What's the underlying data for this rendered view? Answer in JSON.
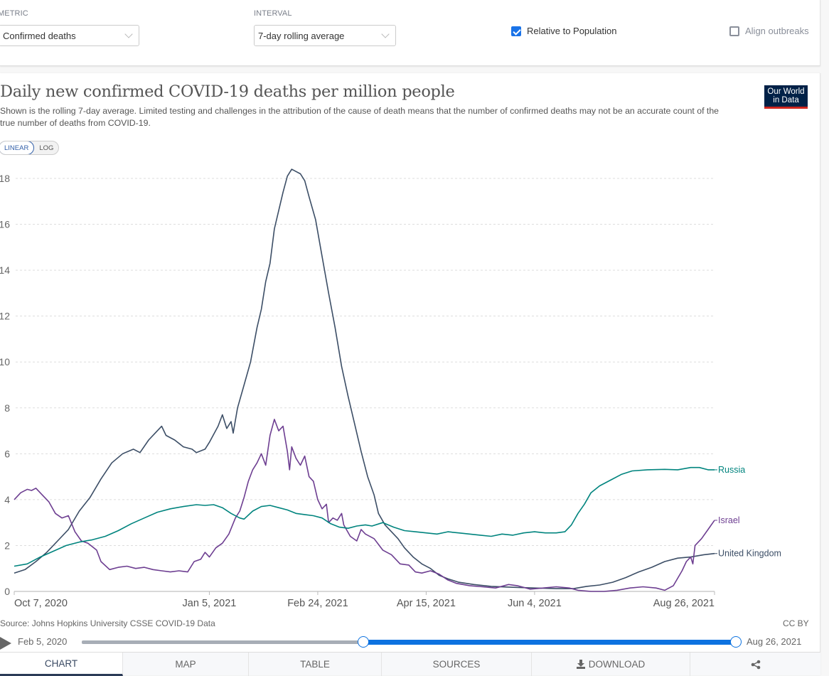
{
  "controls": {
    "metric_label": "METRIC",
    "metric_value": "Confirmed deaths",
    "interval_label": "INTERVAL",
    "interval_value": "7-day rolling average",
    "relative_to_population": {
      "label": "Relative to Population",
      "checked": true
    },
    "align_outbreaks": {
      "label": "Align outbreaks",
      "checked": false
    }
  },
  "header": {
    "title": "Daily new confirmed COVID-19 deaths per million people",
    "subtitle": "Shown is the rolling 7-day average. Limited testing and challenges in the attribution of the cause of death means that the number of confirmed deaths may not be an accurate count of the true number of deaths from COVID-19.",
    "logo_line1": "Our World",
    "logo_line2": "in Data",
    "scale_options": [
      "LINEAR",
      "LOG"
    ],
    "scale_selected": "LINEAR"
  },
  "footer": {
    "source": "Source: Johns Hopkins University CSSE COVID-19 Data",
    "license": "CC BY"
  },
  "timeline": {
    "start_label": "Feb 5, 2020",
    "end_label": "Aug 26, 2021",
    "selected_start": "Oct 7, 2020",
    "selected_end": "Aug 26, 2021"
  },
  "tabs": [
    {
      "label": "CHART",
      "active": true
    },
    {
      "label": "MAP",
      "active": false
    },
    {
      "label": "TABLE",
      "active": false
    },
    {
      "label": "SOURCES",
      "active": false
    },
    {
      "label": "DOWNLOAD",
      "active": false,
      "icon": "download-icon"
    },
    {
      "label": "",
      "active": false,
      "icon": "share-icon"
    }
  ],
  "chart_data": {
    "type": "line",
    "title": "Daily new confirmed COVID-19 deaths per million people",
    "xlabel": "",
    "ylabel": "",
    "x_start": "2020-10-07",
    "x_end": "2021-08-26",
    "x_ticks": [
      {
        "label": "Oct 7, 2020",
        "day": 0
      },
      {
        "label": "Jan 5, 2021",
        "day": 90
      },
      {
        "label": "Feb 24, 2021",
        "day": 140
      },
      {
        "label": "Apr 15, 2021",
        "day": 190
      },
      {
        "label": "Jun 4, 2021",
        "day": 240
      },
      {
        "label": "Aug 26, 2021",
        "day": 323
      }
    ],
    "y_ticks": [
      0,
      2,
      4,
      6,
      8,
      10,
      12,
      14,
      16,
      18
    ],
    "ylim": [
      0,
      18.5
    ],
    "grid": true,
    "legend": "inline-right",
    "series": [
      {
        "name": "United Kingdom",
        "color": "#3c4e66",
        "points": [
          [
            0,
            0.8
          ],
          [
            5,
            0.95
          ],
          [
            10,
            1.3
          ],
          [
            15,
            1.7
          ],
          [
            20,
            2.2
          ],
          [
            25,
            2.7
          ],
          [
            30,
            3.5
          ],
          [
            35,
            4.1
          ],
          [
            40,
            4.9
          ],
          [
            45,
            5.6
          ],
          [
            50,
            6.0
          ],
          [
            55,
            6.2
          ],
          [
            58,
            6.05
          ],
          [
            62,
            6.6
          ],
          [
            65,
            6.9
          ],
          [
            68,
            7.2
          ],
          [
            70,
            6.8
          ],
          [
            74,
            6.6
          ],
          [
            78,
            6.3
          ],
          [
            82,
            6.2
          ],
          [
            84,
            6.05
          ],
          [
            88,
            6.2
          ],
          [
            90,
            6.5
          ],
          [
            94,
            7.2
          ],
          [
            96,
            7.7
          ],
          [
            98,
            7.1
          ],
          [
            100,
            7.4
          ],
          [
            101,
            6.9
          ],
          [
            103,
            8.0
          ],
          [
            106,
            9.0
          ],
          [
            109,
            10.0
          ],
          [
            112,
            11.5
          ],
          [
            114,
            12.3
          ],
          [
            116,
            13.5
          ],
          [
            118,
            14.3
          ],
          [
            120,
            15.8
          ],
          [
            122,
            16.6
          ],
          [
            124,
            17.4
          ],
          [
            126,
            18.1
          ],
          [
            128,
            18.4
          ],
          [
            130,
            18.3
          ],
          [
            132,
            18.2
          ],
          [
            134,
            17.9
          ],
          [
            136,
            17.2
          ],
          [
            139,
            16.2
          ],
          [
            142,
            14.6
          ],
          [
            145,
            13.0
          ],
          [
            148,
            11.5
          ],
          [
            151,
            9.8
          ],
          [
            154,
            8.5
          ],
          [
            157,
            7.3
          ],
          [
            160,
            6.1
          ],
          [
            163,
            5.0
          ],
          [
            166,
            4.2
          ],
          [
            168,
            3.4
          ],
          [
            171,
            2.9
          ],
          [
            174,
            2.6
          ],
          [
            177,
            2.3
          ],
          [
            180,
            1.9
          ],
          [
            184,
            1.5
          ],
          [
            188,
            1.2
          ],
          [
            192,
            1.0
          ],
          [
            196,
            0.7
          ],
          [
            200,
            0.55
          ],
          [
            205,
            0.4
          ],
          [
            212,
            0.3
          ],
          [
            220,
            0.22
          ],
          [
            230,
            0.18
          ],
          [
            240,
            0.15
          ],
          [
            250,
            0.12
          ],
          [
            258,
            0.12
          ],
          [
            264,
            0.22
          ],
          [
            270,
            0.28
          ],
          [
            276,
            0.4
          ],
          [
            282,
            0.6
          ],
          [
            288,
            0.85
          ],
          [
            294,
            1.05
          ],
          [
            300,
            1.3
          ],
          [
            306,
            1.45
          ],
          [
            312,
            1.5
          ],
          [
            318,
            1.6
          ],
          [
            323,
            1.65
          ]
        ]
      },
      {
        "name": "Israel",
        "color": "#6d3e91",
        "points": [
          [
            0,
            4.0
          ],
          [
            3,
            4.3
          ],
          [
            6,
            4.45
          ],
          [
            8,
            4.4
          ],
          [
            10,
            4.5
          ],
          [
            13,
            4.2
          ],
          [
            16,
            3.9
          ],
          [
            19,
            3.4
          ],
          [
            22,
            3.2
          ],
          [
            25,
            3.3
          ],
          [
            28,
            2.6
          ],
          [
            31,
            2.2
          ],
          [
            34,
            2.1
          ],
          [
            38,
            1.8
          ],
          [
            40,
            1.3
          ],
          [
            44,
            0.95
          ],
          [
            48,
            1.05
          ],
          [
            52,
            1.1
          ],
          [
            56,
            1.0
          ],
          [
            60,
            1.05
          ],
          [
            64,
            0.95
          ],
          [
            68,
            0.9
          ],
          [
            72,
            0.85
          ],
          [
            76,
            0.9
          ],
          [
            80,
            0.85
          ],
          [
            83,
            1.3
          ],
          [
            86,
            1.4
          ],
          [
            88,
            1.7
          ],
          [
            90,
            1.5
          ],
          [
            93,
            1.9
          ],
          [
            96,
            2.1
          ],
          [
            99,
            2.5
          ],
          [
            102,
            3.2
          ],
          [
            104,
            3.5
          ],
          [
            106,
            4.1
          ],
          [
            108,
            4.8
          ],
          [
            110,
            5.3
          ],
          [
            112,
            5.6
          ],
          [
            114,
            6.0
          ],
          [
            116,
            5.5
          ],
          [
            118,
            6.8
          ],
          [
            120,
            7.5
          ],
          [
            122,
            7.0
          ],
          [
            124,
            7.2
          ],
          [
            126,
            6.1
          ],
          [
            127,
            5.3
          ],
          [
            128,
            6.3
          ],
          [
            130,
            5.8
          ],
          [
            132,
            5.5
          ],
          [
            134,
            5.9
          ],
          [
            136,
            5.0
          ],
          [
            138,
            4.8
          ],
          [
            140,
            4.0
          ],
          [
            142,
            3.6
          ],
          [
            144,
            3.8
          ],
          [
            145,
            3.0
          ],
          [
            147,
            3.2
          ],
          [
            149,
            3.1
          ],
          [
            151,
            3.4
          ],
          [
            152,
            2.9
          ],
          [
            155,
            2.4
          ],
          [
            158,
            2.2
          ],
          [
            160,
            2.7
          ],
          [
            162,
            2.5
          ],
          [
            166,
            2.3
          ],
          [
            170,
            1.8
          ],
          [
            174,
            1.6
          ],
          [
            178,
            1.2
          ],
          [
            182,
            1.15
          ],
          [
            185,
            0.85
          ],
          [
            188,
            0.8
          ],
          [
            192,
            0.9
          ],
          [
            196,
            0.75
          ],
          [
            200,
            0.5
          ],
          [
            204,
            0.35
          ],
          [
            210,
            0.25
          ],
          [
            216,
            0.2
          ],
          [
            222,
            0.15
          ],
          [
            228,
            0.3
          ],
          [
            232,
            0.25
          ],
          [
            238,
            0.1
          ],
          [
            244,
            0.15
          ],
          [
            250,
            0.2
          ],
          [
            256,
            0.15
          ],
          [
            260,
            0.05
          ],
          [
            266,
            0.0
          ],
          [
            272,
            0.0
          ],
          [
            278,
            0.05
          ],
          [
            284,
            0.15
          ],
          [
            290,
            0.2
          ],
          [
            296,
            0.15
          ],
          [
            300,
            0.05
          ],
          [
            304,
            0.25
          ],
          [
            308,
            0.9
          ],
          [
            310,
            1.3
          ],
          [
            312,
            1.5
          ],
          [
            313,
            1.2
          ],
          [
            314,
            2.0
          ],
          [
            317,
            2.3
          ],
          [
            320,
            2.7
          ],
          [
            323,
            3.1
          ]
        ]
      },
      {
        "name": "Russia",
        "color": "#00847e",
        "points": [
          [
            0,
            1.1
          ],
          [
            6,
            1.2
          ],
          [
            12,
            1.5
          ],
          [
            18,
            1.75
          ],
          [
            24,
            2.0
          ],
          [
            30,
            2.15
          ],
          [
            36,
            2.25
          ],
          [
            42,
            2.4
          ],
          [
            48,
            2.65
          ],
          [
            54,
            2.95
          ],
          [
            60,
            3.2
          ],
          [
            66,
            3.45
          ],
          [
            72,
            3.6
          ],
          [
            78,
            3.7
          ],
          [
            84,
            3.78
          ],
          [
            88,
            3.75
          ],
          [
            92,
            3.78
          ],
          [
            96,
            3.65
          ],
          [
            100,
            3.4
          ],
          [
            104,
            3.2
          ],
          [
            106,
            3.15
          ],
          [
            110,
            3.5
          ],
          [
            114,
            3.7
          ],
          [
            118,
            3.75
          ],
          [
            122,
            3.65
          ],
          [
            126,
            3.55
          ],
          [
            130,
            3.4
          ],
          [
            134,
            3.35
          ],
          [
            138,
            3.3
          ],
          [
            142,
            3.2
          ],
          [
            146,
            2.95
          ],
          [
            150,
            2.8
          ],
          [
            154,
            2.75
          ],
          [
            158,
            2.85
          ],
          [
            162,
            2.9
          ],
          [
            165,
            2.85
          ],
          [
            170,
            3.0
          ],
          [
            175,
            2.8
          ],
          [
            180,
            2.65
          ],
          [
            185,
            2.6
          ],
          [
            190,
            2.55
          ],
          [
            195,
            2.5
          ],
          [
            200,
            2.6
          ],
          [
            205,
            2.55
          ],
          [
            210,
            2.5
          ],
          [
            215,
            2.45
          ],
          [
            220,
            2.4
          ],
          [
            225,
            2.5
          ],
          [
            230,
            2.45
          ],
          [
            235,
            2.55
          ],
          [
            240,
            2.6
          ],
          [
            245,
            2.55
          ],
          [
            250,
            2.55
          ],
          [
            254,
            2.6
          ],
          [
            257,
            2.9
          ],
          [
            260,
            3.4
          ],
          [
            263,
            3.8
          ],
          [
            266,
            4.3
          ],
          [
            270,
            4.6
          ],
          [
            275,
            4.85
          ],
          [
            280,
            5.1
          ],
          [
            285,
            5.25
          ],
          [
            292,
            5.3
          ],
          [
            300,
            5.32
          ],
          [
            306,
            5.3
          ],
          [
            312,
            5.4
          ],
          [
            316,
            5.4
          ],
          [
            320,
            5.3
          ],
          [
            323,
            5.3
          ]
        ]
      }
    ]
  }
}
